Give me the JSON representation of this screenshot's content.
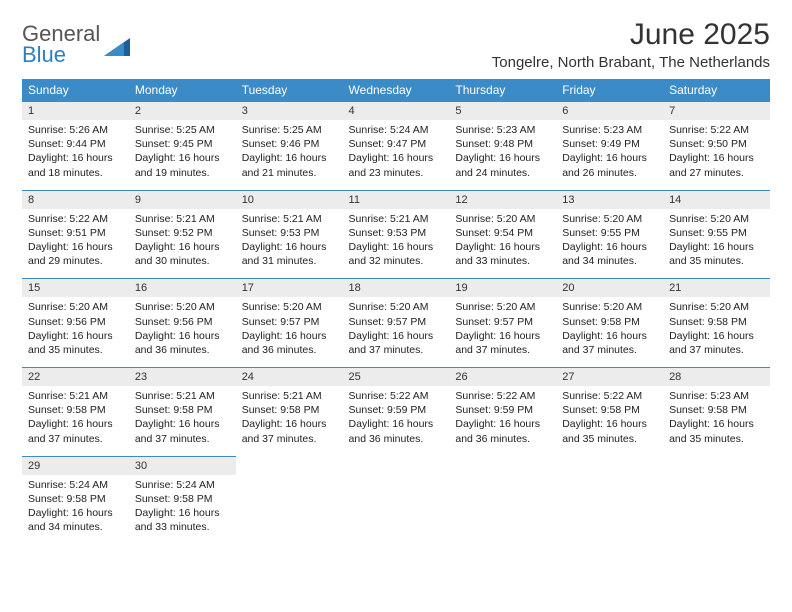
{
  "brand": {
    "line1": "General",
    "line2": "Blue"
  },
  "title": "June 2025",
  "location": "Tongelre, North Brabant, The Netherlands",
  "colors": {
    "header_bg": "#3b8bc9",
    "daynum_bg": "#ececec",
    "border": "#3b8bc9"
  },
  "weekdays": [
    "Sunday",
    "Monday",
    "Tuesday",
    "Wednesday",
    "Thursday",
    "Friday",
    "Saturday"
  ],
  "weeks": [
    [
      {
        "n": "1",
        "sr": "5:26 AM",
        "ss": "9:44 PM",
        "dl": "16 hours and 18 minutes."
      },
      {
        "n": "2",
        "sr": "5:25 AM",
        "ss": "9:45 PM",
        "dl": "16 hours and 19 minutes."
      },
      {
        "n": "3",
        "sr": "5:25 AM",
        "ss": "9:46 PM",
        "dl": "16 hours and 21 minutes."
      },
      {
        "n": "4",
        "sr": "5:24 AM",
        "ss": "9:47 PM",
        "dl": "16 hours and 23 minutes."
      },
      {
        "n": "5",
        "sr": "5:23 AM",
        "ss": "9:48 PM",
        "dl": "16 hours and 24 minutes."
      },
      {
        "n": "6",
        "sr": "5:23 AM",
        "ss": "9:49 PM",
        "dl": "16 hours and 26 minutes."
      },
      {
        "n": "7",
        "sr": "5:22 AM",
        "ss": "9:50 PM",
        "dl": "16 hours and 27 minutes."
      }
    ],
    [
      {
        "n": "8",
        "sr": "5:22 AM",
        "ss": "9:51 PM",
        "dl": "16 hours and 29 minutes."
      },
      {
        "n": "9",
        "sr": "5:21 AM",
        "ss": "9:52 PM",
        "dl": "16 hours and 30 minutes."
      },
      {
        "n": "10",
        "sr": "5:21 AM",
        "ss": "9:53 PM",
        "dl": "16 hours and 31 minutes."
      },
      {
        "n": "11",
        "sr": "5:21 AM",
        "ss": "9:53 PM",
        "dl": "16 hours and 32 minutes."
      },
      {
        "n": "12",
        "sr": "5:20 AM",
        "ss": "9:54 PM",
        "dl": "16 hours and 33 minutes."
      },
      {
        "n": "13",
        "sr": "5:20 AM",
        "ss": "9:55 PM",
        "dl": "16 hours and 34 minutes."
      },
      {
        "n": "14",
        "sr": "5:20 AM",
        "ss": "9:55 PM",
        "dl": "16 hours and 35 minutes."
      }
    ],
    [
      {
        "n": "15",
        "sr": "5:20 AM",
        "ss": "9:56 PM",
        "dl": "16 hours and 35 minutes."
      },
      {
        "n": "16",
        "sr": "5:20 AM",
        "ss": "9:56 PM",
        "dl": "16 hours and 36 minutes."
      },
      {
        "n": "17",
        "sr": "5:20 AM",
        "ss": "9:57 PM",
        "dl": "16 hours and 36 minutes."
      },
      {
        "n": "18",
        "sr": "5:20 AM",
        "ss": "9:57 PM",
        "dl": "16 hours and 37 minutes."
      },
      {
        "n": "19",
        "sr": "5:20 AM",
        "ss": "9:57 PM",
        "dl": "16 hours and 37 minutes."
      },
      {
        "n": "20",
        "sr": "5:20 AM",
        "ss": "9:58 PM",
        "dl": "16 hours and 37 minutes."
      },
      {
        "n": "21",
        "sr": "5:20 AM",
        "ss": "9:58 PM",
        "dl": "16 hours and 37 minutes."
      }
    ],
    [
      {
        "n": "22",
        "sr": "5:21 AM",
        "ss": "9:58 PM",
        "dl": "16 hours and 37 minutes."
      },
      {
        "n": "23",
        "sr": "5:21 AM",
        "ss": "9:58 PM",
        "dl": "16 hours and 37 minutes."
      },
      {
        "n": "24",
        "sr": "5:21 AM",
        "ss": "9:58 PM",
        "dl": "16 hours and 37 minutes."
      },
      {
        "n": "25",
        "sr": "5:22 AM",
        "ss": "9:59 PM",
        "dl": "16 hours and 36 minutes."
      },
      {
        "n": "26",
        "sr": "5:22 AM",
        "ss": "9:59 PM",
        "dl": "16 hours and 36 minutes."
      },
      {
        "n": "27",
        "sr": "5:22 AM",
        "ss": "9:58 PM",
        "dl": "16 hours and 35 minutes."
      },
      {
        "n": "28",
        "sr": "5:23 AM",
        "ss": "9:58 PM",
        "dl": "16 hours and 35 minutes."
      }
    ],
    [
      {
        "n": "29",
        "sr": "5:24 AM",
        "ss": "9:58 PM",
        "dl": "16 hours and 34 minutes."
      },
      {
        "n": "30",
        "sr": "5:24 AM",
        "ss": "9:58 PM",
        "dl": "16 hours and 33 minutes."
      },
      null,
      null,
      null,
      null,
      null
    ]
  ],
  "labels": {
    "sunrise": "Sunrise:",
    "sunset": "Sunset:",
    "daylight": "Daylight:"
  }
}
